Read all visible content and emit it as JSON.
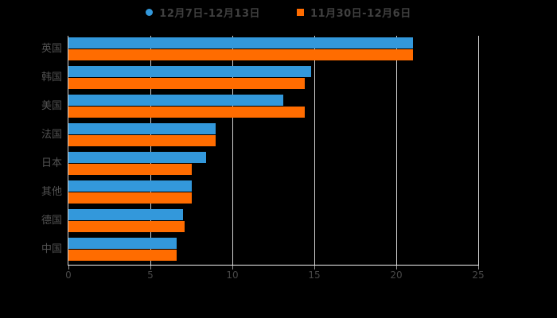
{
  "chart_data": {
    "type": "bar",
    "orientation": "horizontal",
    "title": "",
    "xlabel": "",
    "ylabel": "",
    "categories": [
      "英国",
      "韩国",
      "美国",
      "法国",
      "日本",
      "其他",
      "德国",
      "中国"
    ],
    "series": [
      {
        "name": "12月7日-12月13日",
        "color": "#3398db",
        "marker": "circle",
        "values": [
          21.0,
          14.8,
          13.1,
          9.0,
          8.4,
          7.5,
          7.0,
          6.6
        ]
      },
      {
        "name": "11月30日-12月6日",
        "color": "#ff6c00",
        "marker": "square",
        "values": [
          21.0,
          14.4,
          14.4,
          9.0,
          7.5,
          7.5,
          7.1,
          6.6
        ]
      }
    ],
    "xlim": [
      0,
      25
    ],
    "xticks": [
      0,
      5,
      10,
      15,
      20,
      25
    ],
    "grid": "vertical-gridlines",
    "legend_position": "top"
  },
  "colors": {
    "background": "#000000",
    "series_blue": "#3398db",
    "series_orange": "#ff6c00",
    "gridline": "#d2d2d2",
    "axis_line": "#f2f2f2",
    "legend_text": "#404040",
    "category_text": "#525252",
    "tick_text": "#474747"
  }
}
